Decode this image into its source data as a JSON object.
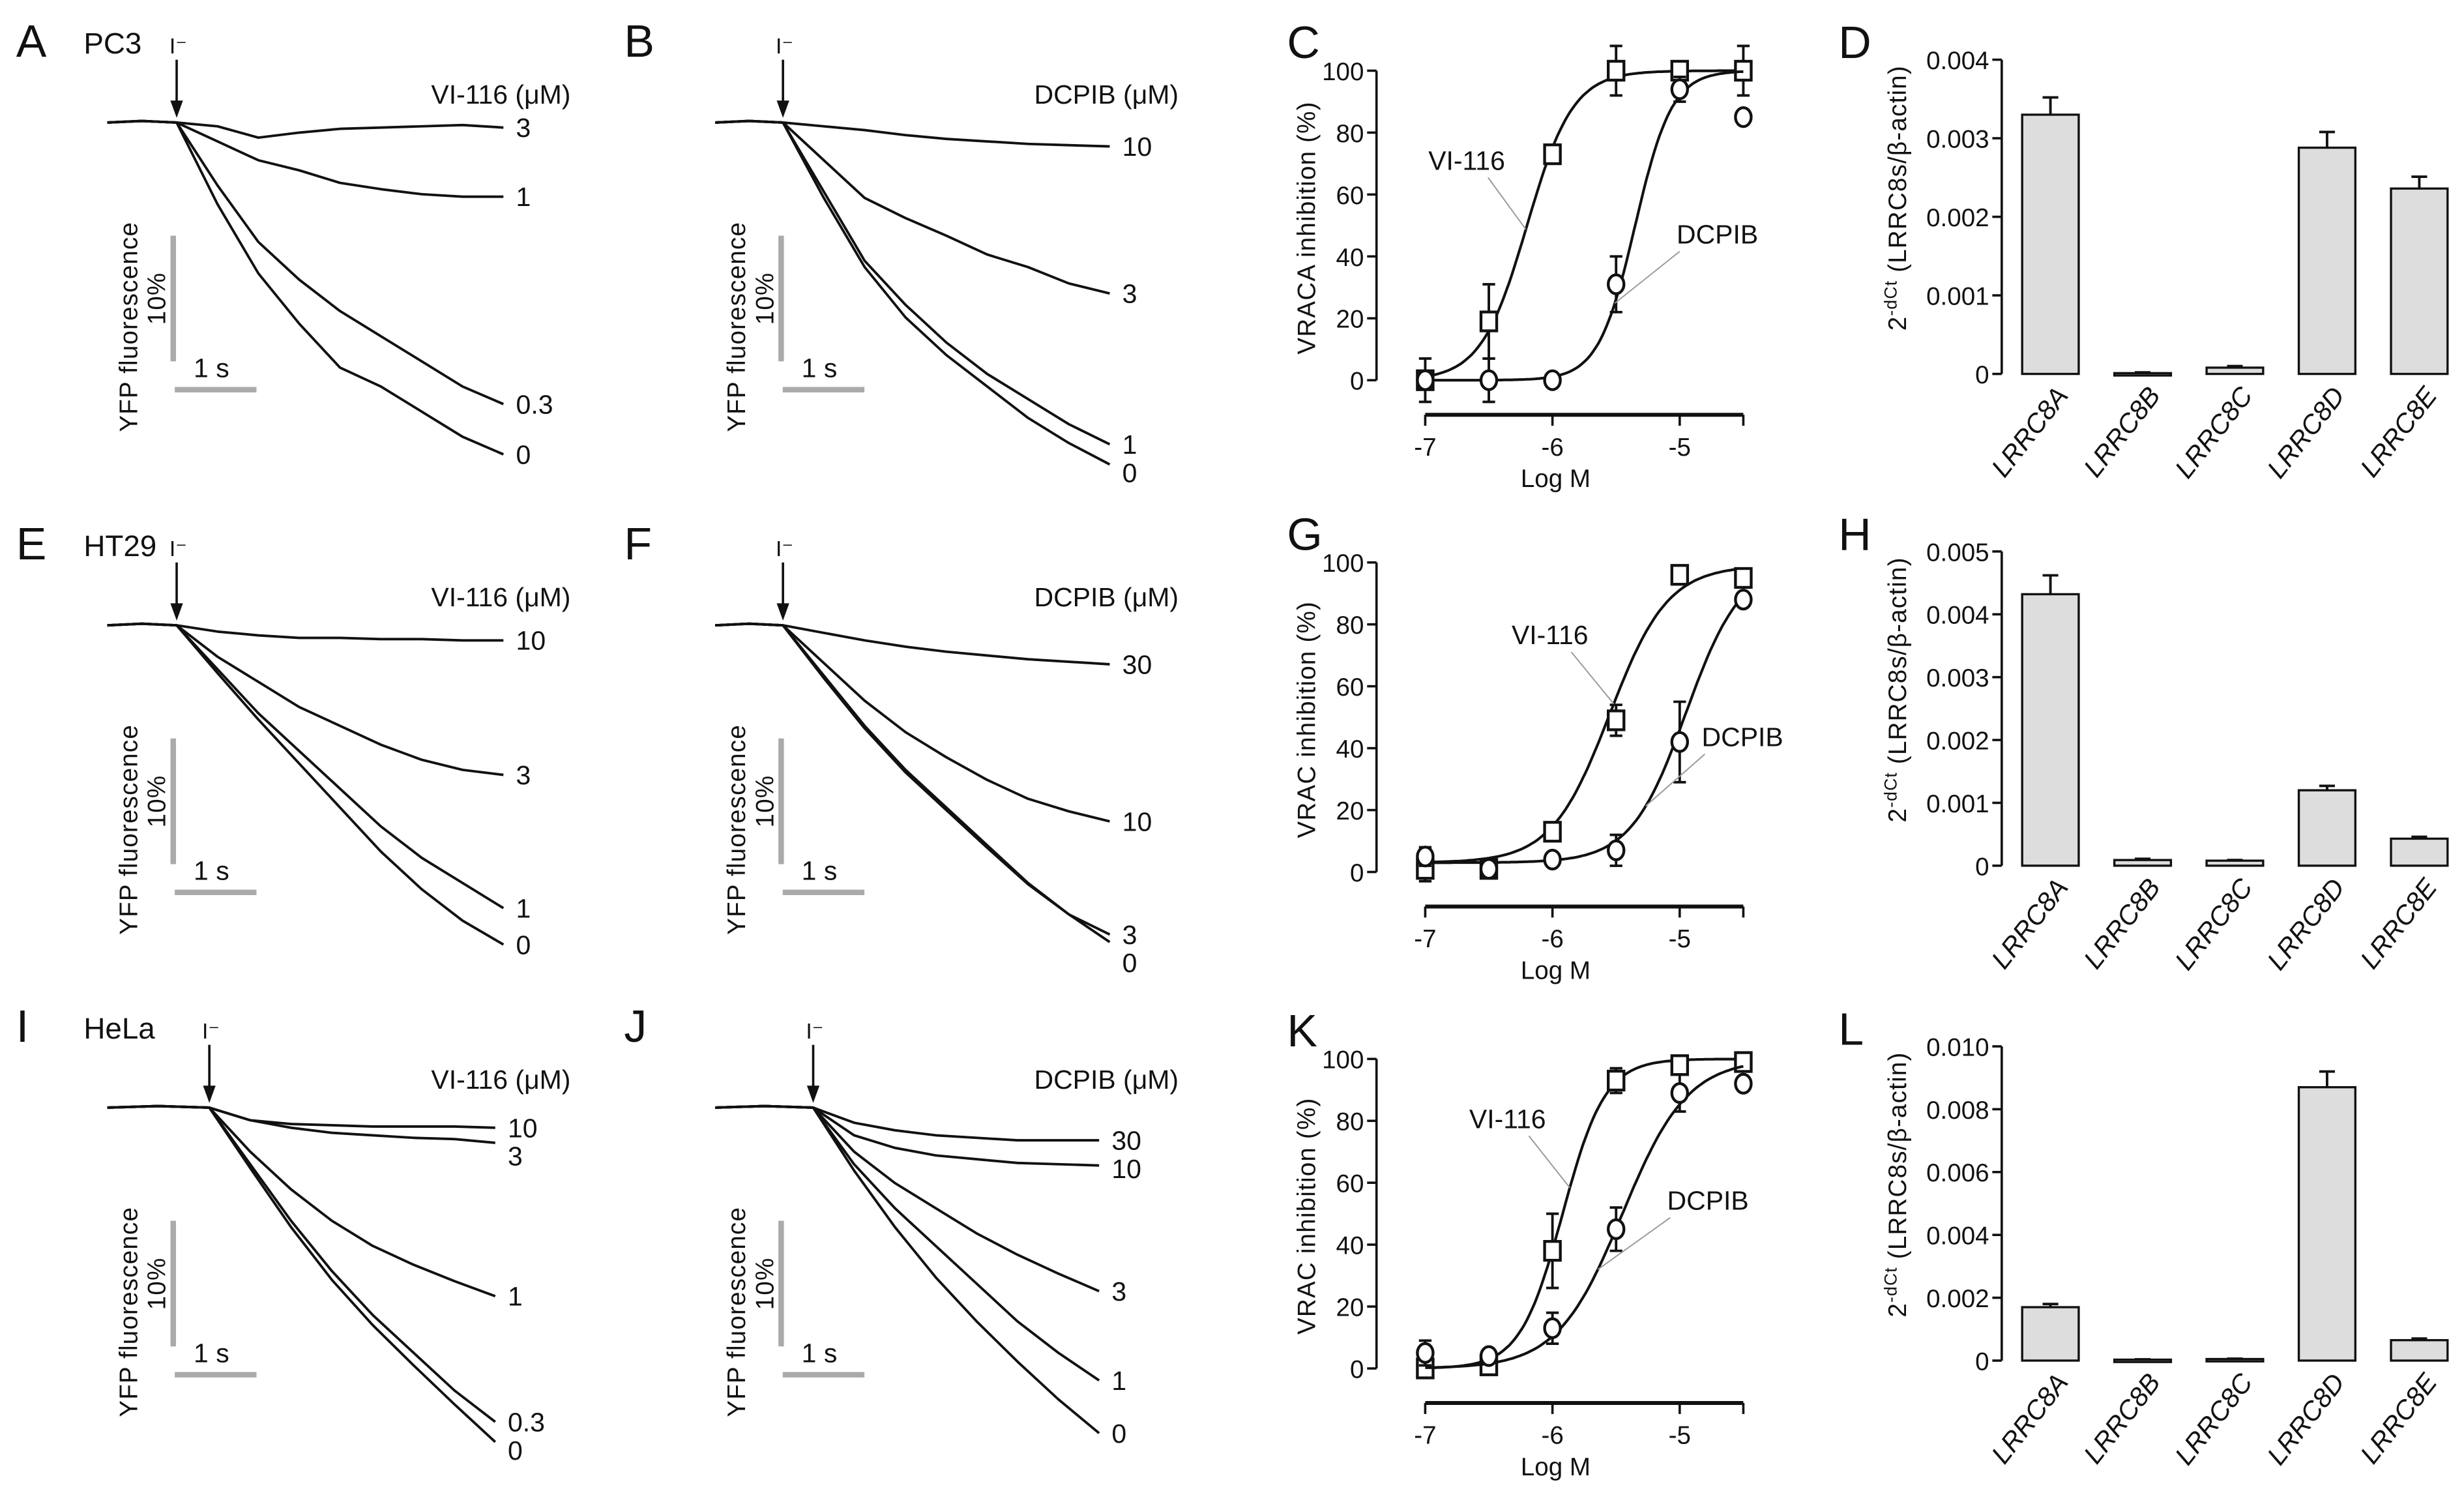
{
  "chart_data": [
    {
      "panel": "A",
      "type": "line",
      "cell_line": "PC3",
      "stimulus_label": "I⁻",
      "legend_title": "VI-116 (μM)",
      "ylabel": "YFP fluorescence",
      "scale_y_label": "10%",
      "scale_x_label": "1 s",
      "scale_y_value": 10,
      "scale_x_value": 1,
      "baseline_s": 0.85,
      "x": [
        0,
        0.5,
        1,
        1.5,
        2,
        2.5,
        3,
        3.5,
        4
      ],
      "series": [
        {
          "name": "3",
          "values": [
            0,
            0.3,
            1.2,
            0.8,
            0.5,
            0.4,
            0.3,
            0.2,
            0.4
          ]
        },
        {
          "name": "1",
          "values": [
            0,
            1.5,
            3,
            3.8,
            4.8,
            5.3,
            5.7,
            5.9,
            5.9
          ]
        },
        {
          "name": "0.3",
          "values": [
            0,
            5,
            9.5,
            12.5,
            15,
            17,
            19,
            21,
            22.4
          ]
        },
        {
          "name": "0",
          "values": [
            0,
            6.5,
            12,
            16,
            19.5,
            21,
            23,
            25,
            26.4
          ]
        }
      ]
    },
    {
      "panel": "B",
      "type": "line",
      "stimulus_label": "I⁻",
      "legend_title": "DCPIB (μM)",
      "ylabel": "YFP fluorescence",
      "scale_y_label": "10%",
      "scale_x_label": "1 s",
      "scale_y_value": 10,
      "scale_x_value": 1,
      "baseline_s": 0.83,
      "x": [
        0,
        0.5,
        1,
        1.5,
        2,
        2.5,
        3,
        3.5,
        4
      ],
      "series": [
        {
          "name": "10",
          "values": [
            0,
            0.3,
            0.6,
            1,
            1.3,
            1.5,
            1.7,
            1.8,
            1.9
          ]
        },
        {
          "name": "3",
          "values": [
            0,
            3,
            6,
            7.6,
            9,
            10.5,
            11.5,
            12.8,
            13.6
          ]
        },
        {
          "name": "1",
          "values": [
            0,
            5.5,
            11,
            14.5,
            17.5,
            20,
            22,
            24,
            25.6
          ]
        },
        {
          "name": "0",
          "values": [
            0,
            6,
            11.5,
            15.5,
            18.5,
            21,
            23.5,
            25.5,
            27.2
          ]
        }
      ]
    },
    {
      "panel": "C",
      "type": "scatter",
      "ylabel": "VRACA inhibition (%)",
      "xlabel": "Log M",
      "xlim": [
        -7,
        -4.5
      ],
      "ylim": [
        0,
        100
      ],
      "xticks": [
        -7,
        -6,
        -5
      ],
      "xtick_labels": [
        "-7",
        "-6",
        "-5"
      ],
      "yticks": [
        0,
        20,
        40,
        60,
        80,
        100
      ],
      "ytick_labels": [
        "0",
        "20",
        "40",
        "60",
        "80",
        "100"
      ],
      "series": [
        {
          "name": "VI-116",
          "marker": "square",
          "x": [
            -7,
            -6.5,
            -6,
            -5.5,
            -5,
            -4.5
          ],
          "y": [
            0,
            19,
            73,
            100,
            100,
            100
          ],
          "err": [
            7,
            12,
            2,
            8,
            1,
            8
          ],
          "fit": {
            "logIC50": -6.2,
            "hill": 2.4,
            "bottom": 0,
            "top": 100
          }
        },
        {
          "name": "DCPIB",
          "marker": "circle",
          "x": [
            -7,
            -6.5,
            -6,
            -5.5,
            -5,
            -4.5
          ],
          "y": [
            0,
            0,
            0,
            31,
            94,
            85
          ],
          "err": [
            1,
            7,
            2,
            9,
            4,
            1
          ],
          "fit": {
            "logIC50": -5.35,
            "hill": 3,
            "bottom": 0,
            "top": 100
          }
        }
      ]
    },
    {
      "panel": "D",
      "type": "bar",
      "categories": [
        "LRRC8A",
        "LRRC8B",
        "LRRC8C",
        "LRRC8D",
        "LRRC8E"
      ],
      "values": [
        0.0033,
        1e-05,
        8e-05,
        0.00288,
        0.00236
      ],
      "errors": [
        0.00022,
        1e-05,
        2e-05,
        0.0002,
        0.00015
      ],
      "ylim": [
        0,
        0.004
      ],
      "yticks": [
        0,
        0.001,
        0.002,
        0.003,
        0.004
      ],
      "ytick_labels": [
        "0",
        "0.001",
        "0.002",
        "0.003",
        "0.004"
      ],
      "ylabel": {
        "base": "2",
        "sup": "-dCt",
        "rest": " (LRRC8s/β-actin)"
      }
    },
    {
      "panel": "E",
      "type": "line",
      "cell_line": "HT29",
      "stimulus_label": "I⁻",
      "legend_title": "VI-116 (μM)",
      "ylabel": "YFP fluorescence",
      "scale_y_label": "10%",
      "scale_x_label": "1 s",
      "scale_y_value": 10,
      "scale_x_value": 1,
      "baseline_s": 0.85,
      "x": [
        0,
        0.5,
        1,
        1.5,
        2,
        2.5,
        3,
        3.5,
        4
      ],
      "series": [
        {
          "name": "10",
          "values": [
            0,
            0.5,
            0.8,
            1,
            1,
            1.1,
            1.1,
            1.2,
            1.2
          ]
        },
        {
          "name": "3",
          "values": [
            0,
            2.5,
            4.5,
            6.5,
            8,
            9.5,
            10.7,
            11.5,
            11.9
          ]
        },
        {
          "name": "1",
          "values": [
            0,
            3.5,
            7,
            10,
            13,
            16,
            18.5,
            20.5,
            22.5
          ]
        },
        {
          "name": "0",
          "values": [
            0,
            3.8,
            7.5,
            11,
            14.5,
            18,
            21,
            23.5,
            25.4
          ]
        }
      ]
    },
    {
      "panel": "F",
      "type": "line",
      "stimulus_label": "I⁻",
      "legend_title": "DCPIB (μM)",
      "ylabel": "YFP fluorescence",
      "scale_y_label": "10%",
      "scale_x_label": "1 s",
      "scale_y_value": 10,
      "scale_x_value": 1,
      "baseline_s": 0.83,
      "x": [
        0,
        0.5,
        1,
        1.5,
        2,
        2.5,
        3,
        3.5,
        4
      ],
      "series": [
        {
          "name": "30",
          "values": [
            0,
            0.6,
            1.2,
            1.7,
            2.1,
            2.4,
            2.7,
            2.9,
            3.1
          ]
        },
        {
          "name": "10",
          "values": [
            0,
            3,
            6,
            8.5,
            10.5,
            12.3,
            13.8,
            14.8,
            15.6
          ]
        },
        {
          "name": "3",
          "values": [
            0,
            4,
            8,
            11.5,
            14.5,
            17.5,
            20.5,
            23,
            24.6
          ]
        },
        {
          "name": "0",
          "values": [
            0,
            4.2,
            8.2,
            11.7,
            14.7,
            17.7,
            20.6,
            23,
            25.2
          ]
        }
      ]
    },
    {
      "panel": "G",
      "type": "scatter",
      "ylabel": "VRAC inhibition (%)",
      "xlabel": "Log M",
      "xlim": [
        -7,
        -4.5
      ],
      "ylim": [
        0,
        100
      ],
      "xticks": [
        -7,
        -6,
        -5
      ],
      "xtick_labels": [
        "-7",
        "-6",
        "-5"
      ],
      "yticks": [
        0,
        20,
        40,
        60,
        80,
        100
      ],
      "ytick_labels": [
        "0",
        "20",
        "40",
        "60",
        "80",
        "100"
      ],
      "series": [
        {
          "name": "VI-116",
          "marker": "square",
          "x": [
            -7,
            -6.5,
            -6,
            -5.5,
            -5,
            -4.5
          ],
          "y": [
            1,
            1,
            13,
            49,
            96,
            95
          ],
          "err": [
            4,
            2,
            2,
            5,
            2,
            2
          ],
          "fit": {
            "logIC50": -5.55,
            "hill": 1.9,
            "bottom": 3,
            "top": 99
          }
        },
        {
          "name": "DCPIB",
          "marker": "circle",
          "x": [
            -7,
            -6.5,
            -6,
            -5.5,
            -5,
            -4.5
          ],
          "y": [
            5,
            1,
            4,
            7,
            42,
            88
          ],
          "err": [
            3,
            2,
            1,
            5,
            13,
            2
          ],
          "fit": {
            "logIC50": -4.95,
            "hill": 2,
            "bottom": 3,
            "top": 100
          }
        }
      ]
    },
    {
      "panel": "H",
      "type": "bar",
      "categories": [
        "LRRC8A",
        "LRRC8B",
        "LRRC8C",
        "LRRC8D",
        "LRRC8E"
      ],
      "values": [
        0.00432,
        9e-05,
        8e-05,
        0.0012,
        0.00043
      ],
      "errors": [
        0.0003,
        2e-05,
        1e-05,
        7e-05,
        3e-05
      ],
      "ylim": [
        0,
        0.005
      ],
      "yticks": [
        0,
        0.001,
        0.002,
        0.003,
        0.004,
        0.005
      ],
      "ytick_labels": [
        "0",
        "0.001",
        "0.002",
        "0.003",
        "0.004",
        "0.005"
      ],
      "ylabel": {
        "base": "2",
        "sup": "-dCt",
        "rest": " (LRRC8s/β-actin)"
      }
    },
    {
      "panel": "I",
      "type": "line",
      "cell_line": "HeLa",
      "stimulus_label": "I⁻",
      "legend_title": "VI-116 (μM)",
      "ylabel": "YFP fluorescence",
      "scale_y_label": "10%",
      "scale_x_label": "1 s",
      "scale_y_value": 10,
      "scale_x_value": 1,
      "baseline_s": 1.25,
      "x": [
        0,
        0.5,
        1,
        1.5,
        2,
        2.5,
        3,
        3.5
      ],
      "series": [
        {
          "name": "10",
          "values": [
            0,
            1,
            1.3,
            1.4,
            1.5,
            1.5,
            1.5,
            1.6
          ]
        },
        {
          "name": "3",
          "values": [
            0,
            1,
            1.6,
            2,
            2.2,
            2.4,
            2.5,
            2.8
          ]
        },
        {
          "name": "1",
          "values": [
            0,
            3.5,
            6.5,
            9,
            11,
            12.5,
            13.8,
            15
          ]
        },
        {
          "name": "0.3",
          "values": [
            0,
            4.5,
            9,
            13,
            16.5,
            19.5,
            22.5,
            25
          ]
        },
        {
          "name": "0",
          "values": [
            0,
            4.8,
            9.5,
            13.7,
            17.3,
            20.5,
            23.6,
            26.6
          ]
        }
      ]
    },
    {
      "panel": "J",
      "type": "line",
      "stimulus_label": "I⁻",
      "legend_title": "DCPIB (μM)",
      "ylabel": "YFP fluorescence",
      "scale_y_label": "10%",
      "scale_x_label": "1 s",
      "scale_y_value": 10,
      "scale_x_value": 1,
      "baseline_s": 1.2,
      "x": [
        0,
        0.5,
        1,
        1.5,
        2,
        2.5,
        3,
        3.5
      ],
      "series": [
        {
          "name": "30",
          "values": [
            0,
            1.2,
            1.8,
            2.2,
            2.4,
            2.6,
            2.6,
            2.6
          ]
        },
        {
          "name": "10",
          "values": [
            0,
            2.2,
            3.2,
            3.8,
            4.1,
            4.4,
            4.5,
            4.6
          ]
        },
        {
          "name": "3",
          "values": [
            0,
            3.5,
            6,
            8,
            10,
            11.7,
            13.2,
            14.6
          ]
        },
        {
          "name": "1",
          "values": [
            0,
            4.5,
            8,
            11,
            14,
            17,
            19.5,
            21.7
          ]
        },
        {
          "name": "0",
          "values": [
            0,
            5,
            9.5,
            13.5,
            17,
            20.2,
            23.2,
            25.9
          ]
        }
      ]
    },
    {
      "panel": "K",
      "type": "scatter",
      "ylabel": "VRAC inhibition (%)",
      "xlabel": "Log M",
      "xlim": [
        -7,
        -4.5
      ],
      "ylim": [
        0,
        100
      ],
      "xticks": [
        -7,
        -6,
        -5
      ],
      "xtick_labels": [
        "-7",
        "-6",
        "-5"
      ],
      "yticks": [
        0,
        20,
        40,
        60,
        80,
        100
      ],
      "ytick_labels": [
        "0",
        "20",
        "40",
        "60",
        "80",
        "100"
      ],
      "series": [
        {
          "name": "VI-116",
          "marker": "square",
          "x": [
            -7,
            -6.5,
            -6,
            -5.5,
            -5,
            -4.5
          ],
          "y": [
            0,
            1,
            38,
            93,
            98,
            99
          ],
          "err": [
            1,
            2,
            12,
            4,
            2,
            1
          ],
          "fit": {
            "logIC50": -5.92,
            "hill": 2.6,
            "bottom": 0,
            "top": 100
          }
        },
        {
          "name": "DCPIB",
          "marker": "circle",
          "x": [
            -7,
            -6.5,
            -6,
            -5.5,
            -5,
            -4.5
          ],
          "y": [
            5,
            4,
            13,
            45,
            89,
            92
          ],
          "err": [
            4,
            2,
            5,
            7,
            6,
            2
          ],
          "fit": {
            "logIC50": -5.45,
            "hill": 1.7,
            "bottom": 0,
            "top": 100
          }
        }
      ]
    },
    {
      "panel": "L",
      "type": "bar",
      "categories": [
        "LRRC8A",
        "LRRC8B",
        "LRRC8C",
        "LRRC8D",
        "LRRC8E"
      ],
      "values": [
        0.0017,
        3e-05,
        5e-05,
        0.0087,
        0.00065
      ],
      "errors": [
        0.0001,
        1e-05,
        1e-05,
        0.0005,
        5e-05
      ],
      "ylim": [
        0,
        0.01
      ],
      "yticks": [
        0,
        0.002,
        0.004,
        0.006,
        0.008,
        0.01
      ],
      "ytick_labels": [
        "0",
        "0.002",
        "0.004",
        "0.006",
        "0.008",
        "0.010"
      ],
      "ylabel": {
        "base": "2",
        "sup": "-dCt",
        "rest": " (LRRC8s/β-actin)"
      }
    }
  ]
}
